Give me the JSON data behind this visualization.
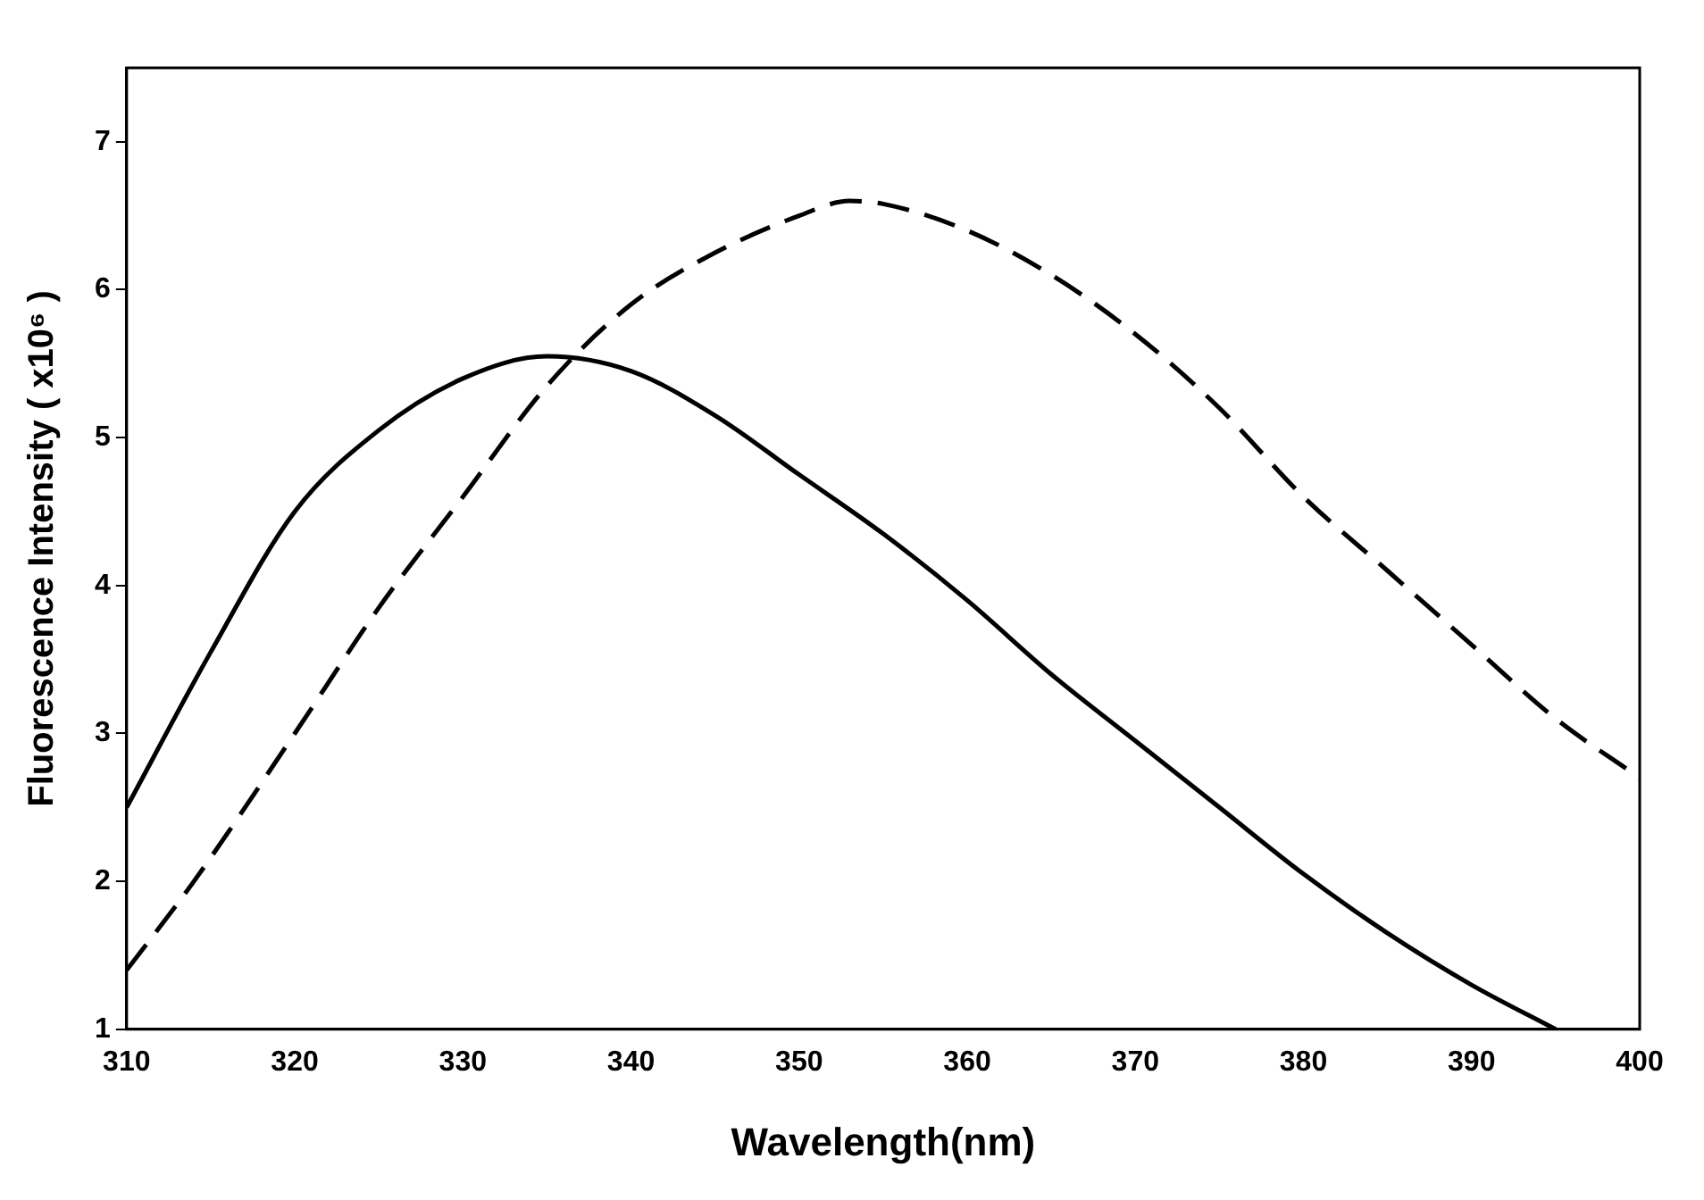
{
  "chart_data": {
    "type": "line",
    "xlabel": "Wavelength(nm)",
    "ylabel": "Fluorescence Intensity ( x10⁶ )",
    "xlim": [
      310,
      400
    ],
    "xticks": [
      310,
      320,
      330,
      340,
      350,
      360,
      370,
      380,
      390,
      400
    ],
    "ylim": [
      1,
      7.5
    ],
    "yticks": [
      1,
      2,
      3,
      4,
      5,
      6,
      7
    ],
    "grid": false,
    "legend": false,
    "marker": "none",
    "series": [
      {
        "color": "#000000",
        "line_style": "solid",
        "x": [
          310,
          315,
          320,
          325,
          330,
          335,
          340,
          345,
          350,
          355,
          360,
          365,
          370,
          375,
          380,
          385,
          390,
          395
        ],
        "values": [
          2.5,
          3.55,
          4.5,
          5.05,
          5.4,
          5.55,
          5.45,
          5.15,
          4.75,
          4.35,
          3.9,
          3.4,
          2.95,
          2.5,
          2.05,
          1.65,
          1.3,
          1.0
        ]
      },
      {
        "color": "#000000",
        "line_style": "dashed",
        "x": [
          310,
          314,
          320,
          325,
          330,
          335,
          340,
          345,
          350,
          353,
          355,
          360,
          365,
          370,
          375,
          380,
          385,
          390,
          395,
          400
        ],
        "values": [
          1.4,
          2.0,
          3.0,
          3.85,
          4.6,
          5.35,
          5.9,
          6.25,
          6.5,
          6.6,
          6.58,
          6.4,
          6.1,
          5.7,
          5.2,
          4.6,
          4.1,
          3.6,
          3.1,
          2.7
        ]
      }
    ]
  }
}
